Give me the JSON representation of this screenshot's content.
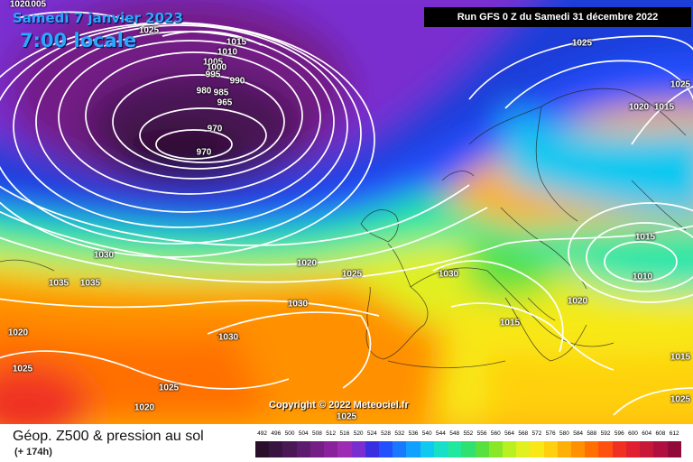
{
  "header": {
    "date": "Samedi 7 janvier 2023",
    "time": "7:00 locale",
    "run": "Run GFS 0 Z du Samedi 31 décembre 2022"
  },
  "copyright": "Copyright © 2022 Meteociel.fr",
  "footer": {
    "title": "Géop. Z500 & pression au sol",
    "subtitle": "(+ 174h)"
  },
  "legend": {
    "values": [
      "492",
      "496",
      "500",
      "504",
      "508",
      "512",
      "516",
      "520",
      "524",
      "528",
      "532",
      "536",
      "540",
      "544",
      "548",
      "552",
      "556",
      "560",
      "564",
      "568",
      "572",
      "576",
      "580",
      "584",
      "588",
      "592",
      "596",
      "600",
      "604",
      "608",
      "612"
    ],
    "colors": [
      "#2a0f2a",
      "#3a1440",
      "#4a1855",
      "#5e1c6e",
      "#731f86",
      "#8a229c",
      "#9e2bb3",
      "#7a2ed0",
      "#3a2fe0",
      "#2250ff",
      "#1a78ff",
      "#10a0ff",
      "#10c8f0",
      "#18e0c8",
      "#20e8a0",
      "#30e070",
      "#58e040",
      "#88e828",
      "#b8f020",
      "#e0f020",
      "#f8e818",
      "#ffd010",
      "#ffb008",
      "#ff9000",
      "#ff7000",
      "#ff5010",
      "#f03020",
      "#e02030",
      "#c81838",
      "#b01040",
      "#900a3a"
    ]
  },
  "isobars": [
    {
      "label": "1005",
      "kind": "high"
    },
    {
      "label": "1025",
      "kind": "high"
    },
    {
      "label": "1015",
      "kind": "high"
    },
    {
      "label": "1010",
      "kind": "low"
    },
    {
      "label": "1005",
      "kind": "low"
    },
    {
      "label": "1000",
      "kind": "low"
    },
    {
      "label": "995",
      "kind": "low"
    },
    {
      "label": "990",
      "kind": "low"
    },
    {
      "label": "985",
      "kind": "low"
    },
    {
      "label": "980",
      "kind": "low"
    },
    {
      "label": "965",
      "kind": "low"
    },
    {
      "label": "970",
      "kind": "low"
    },
    {
      "label": "970",
      "kind": "low"
    },
    {
      "label": "1025",
      "kind": "high"
    },
    {
      "label": "1020",
      "kind": "high"
    },
    {
      "label": "1015",
      "kind": "high"
    },
    {
      "label": "1030",
      "kind": "high"
    },
    {
      "label": "1035",
      "kind": "high"
    },
    {
      "label": "1035",
      "kind": "high"
    },
    {
      "label": "1020",
      "kind": "high"
    },
    {
      "label": "1025",
      "kind": "high"
    },
    {
      "label": "1030",
      "kind": "high"
    },
    {
      "label": "1020",
      "kind": "high"
    },
    {
      "label": "1025",
      "kind": "high"
    },
    {
      "label": "1030",
      "kind": "high"
    },
    {
      "label": "1030",
      "kind": "high"
    },
    {
      "label": "1025",
      "kind": "high"
    },
    {
      "label": "1020",
      "kind": "high"
    },
    {
      "label": "1025",
      "kind": "high"
    },
    {
      "label": "1015",
      "kind": "high"
    },
    {
      "label": "1015",
      "kind": "low"
    },
    {
      "label": "1010",
      "kind": "low"
    },
    {
      "label": "1020",
      "kind": "high"
    },
    {
      "label": "1015",
      "kind": "high"
    },
    {
      "label": "1025",
      "kind": "high"
    },
    {
      "label": "1025",
      "kind": "high"
    },
    {
      "label": "1020",
      "kind": "high"
    }
  ]
}
